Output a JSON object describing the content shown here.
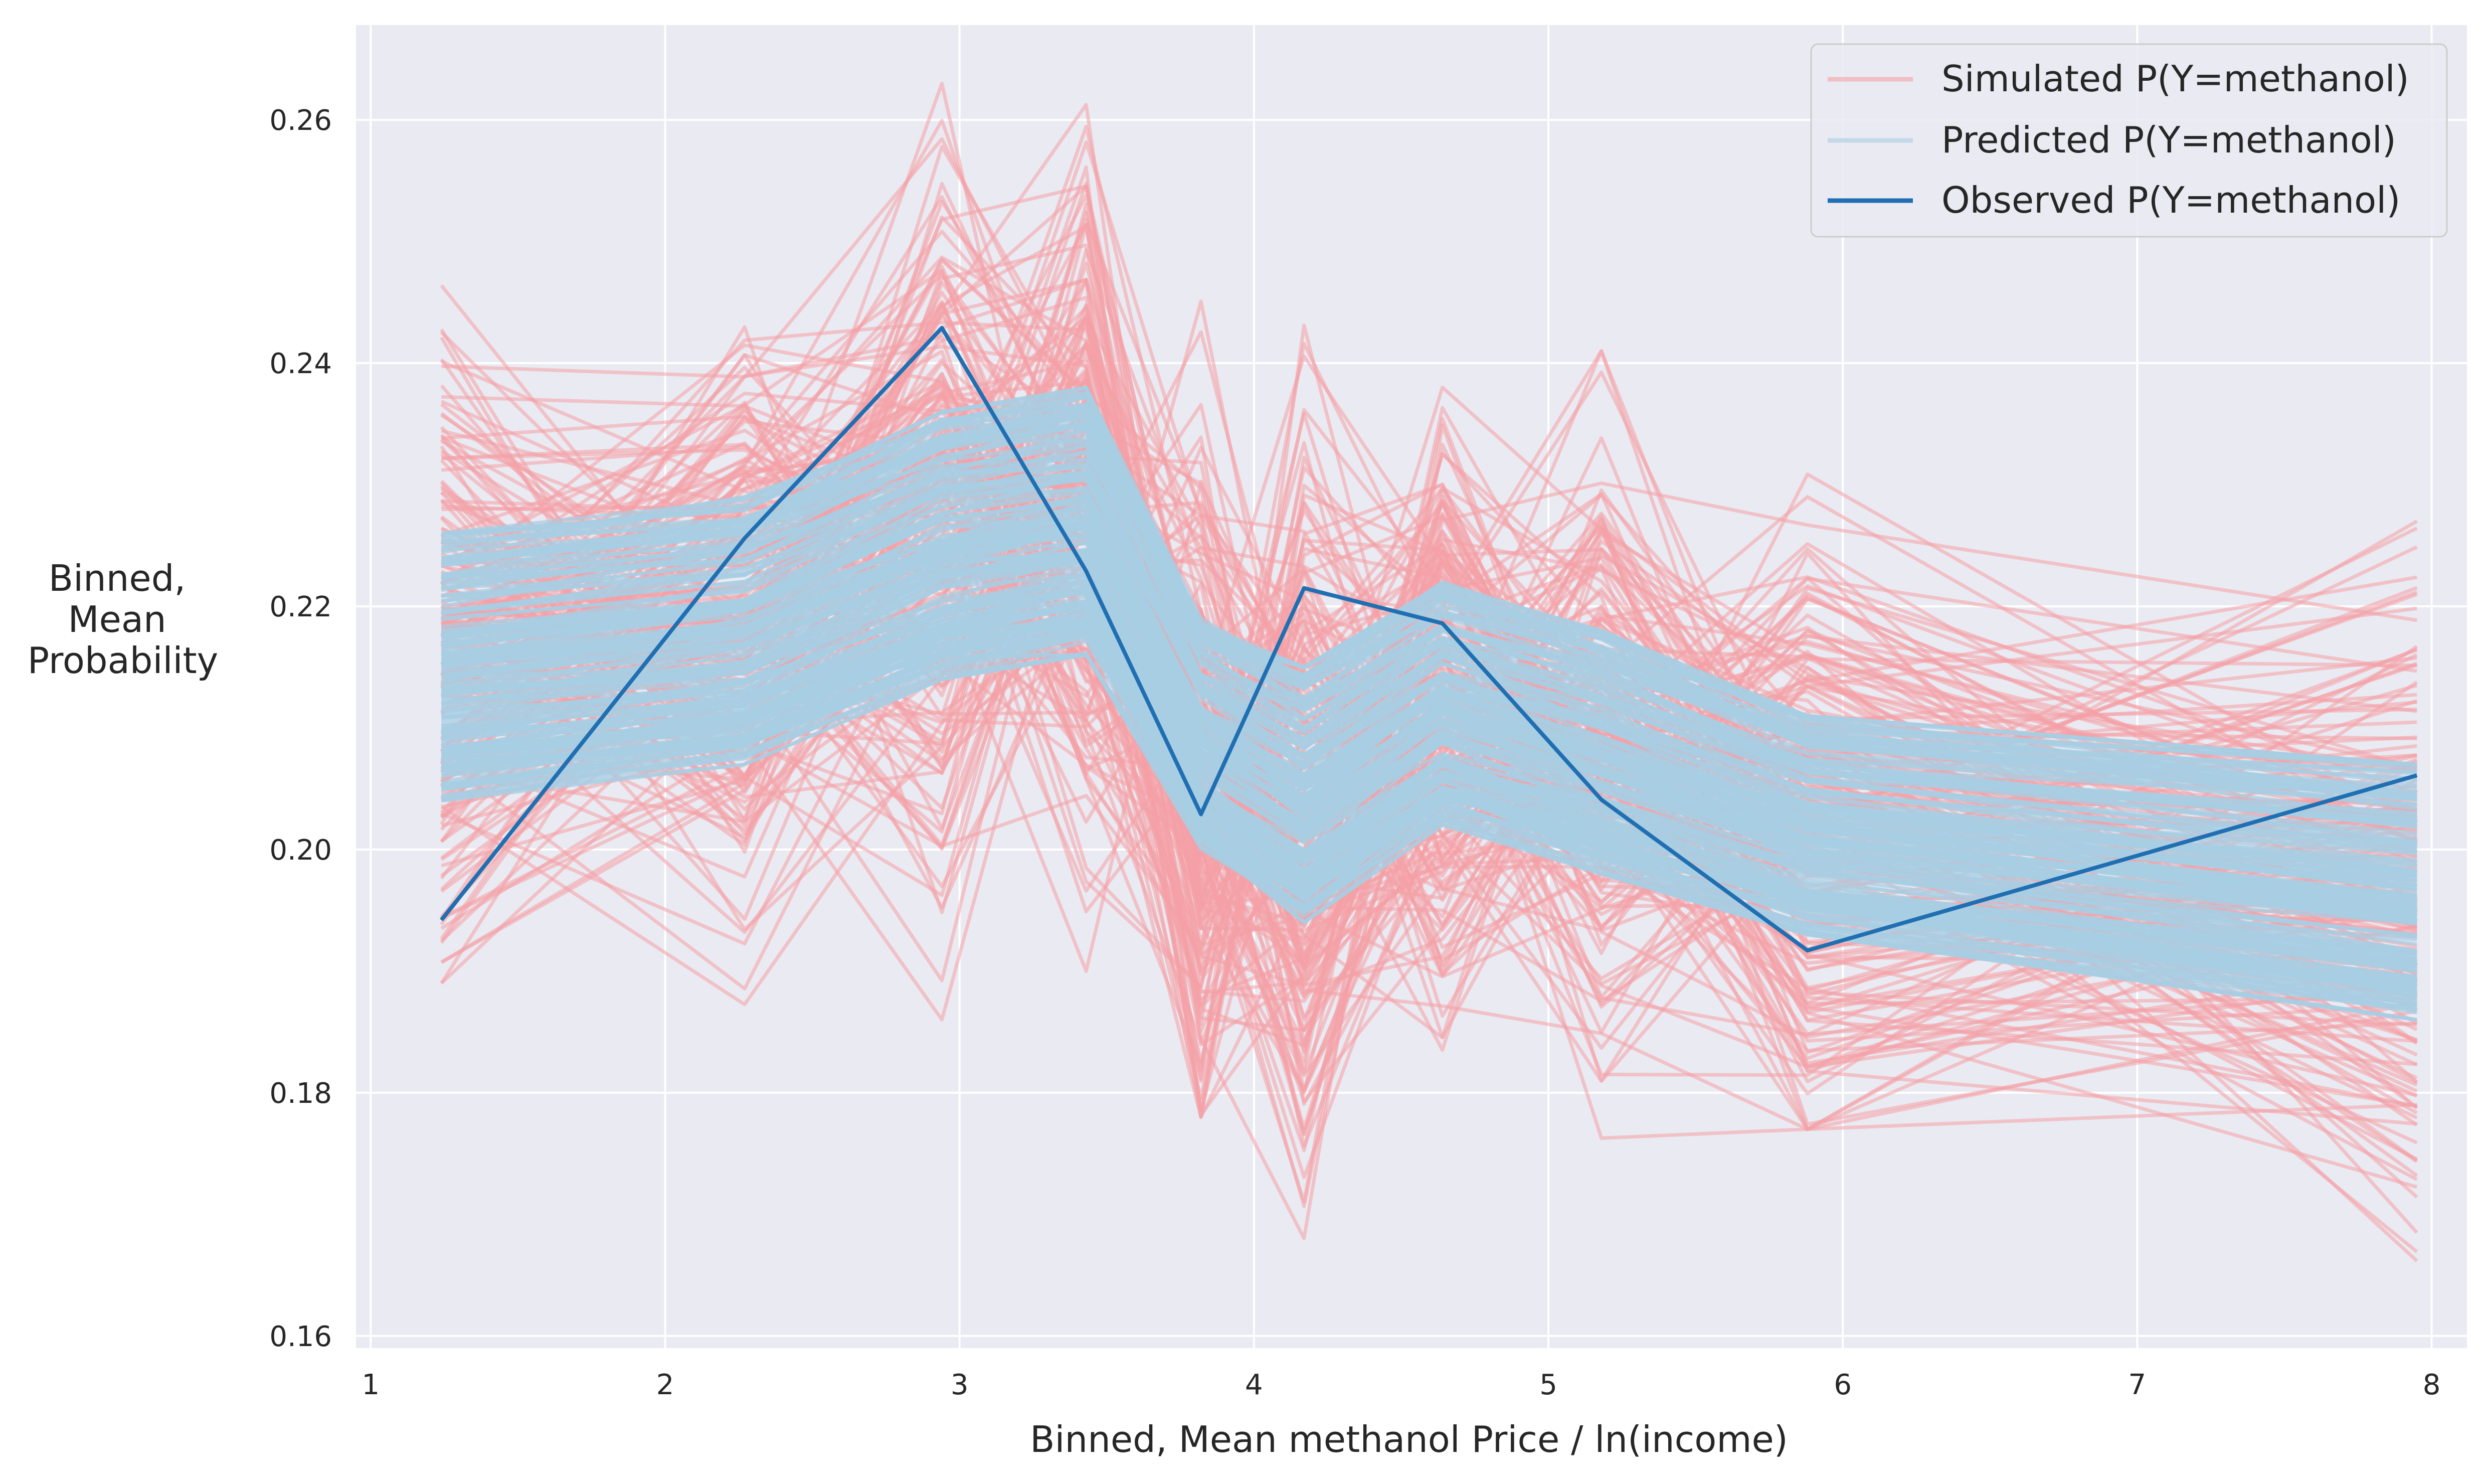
{
  "chart_data": {
    "type": "line",
    "xlabel": "Binned, Mean methanol Price / ln(income)",
    "ylabel_lines": [
      "Binned,",
      "Mean",
      "Probability"
    ],
    "xlim": [
      0.95,
      8.12
    ],
    "ylim": [
      0.159,
      0.2678
    ],
    "xticks": [
      1,
      2,
      3,
      4,
      5,
      6,
      7,
      8
    ],
    "xtick_labels": [
      "1",
      "2",
      "3",
      "4",
      "5",
      "6",
      "7",
      "8"
    ],
    "yticks": [
      0.16,
      0.18,
      0.2,
      0.22,
      0.24,
      0.26
    ],
    "ytick_labels": [
      "0.16",
      "0.18",
      "0.20",
      "0.22",
      "0.24",
      "0.26"
    ],
    "grid": true,
    "legend_position": "top-right",
    "bin_x": [
      1.24,
      2.27,
      2.94,
      3.43,
      3.82,
      4.17,
      4.64,
      5.18,
      5.88,
      7.95
    ],
    "series": [
      {
        "name": "Simulated P(Y=methanol)",
        "color": "#f4a0a6",
        "band_lower": [
          0.189,
          0.186,
          0.181,
          0.19,
          0.178,
          0.166,
          0.176,
          0.176,
          0.177,
          0.165
        ],
        "band_upper": [
          0.253,
          0.248,
          0.263,
          0.263,
          0.248,
          0.25,
          0.238,
          0.241,
          0.242,
          0.227
        ],
        "band_center": [
          0.216,
          0.219,
          0.228,
          0.228,
          0.207,
          0.203,
          0.212,
          0.207,
          0.203,
          0.197
        ],
        "n_draws": 200
      },
      {
        "name": "Predicted P(Y=methanol)",
        "color": "#a8cde3",
        "band_lower": [
          0.204,
          0.207,
          0.214,
          0.216,
          0.2,
          0.194,
          0.202,
          0.198,
          0.193,
          0.186
        ],
        "band_upper": [
          0.226,
          0.229,
          0.236,
          0.238,
          0.219,
          0.215,
          0.222,
          0.218,
          0.211,
          0.207
        ],
        "n_draws": 200
      },
      {
        "name": "Observed P(Y=methanol)",
        "color": "#1f6fb2",
        "values": [
          0.1942,
          0.2256,
          0.2429,
          0.2229,
          0.2029,
          0.2215,
          0.2186,
          0.2041,
          0.1917,
          0.2061
        ]
      }
    ]
  }
}
